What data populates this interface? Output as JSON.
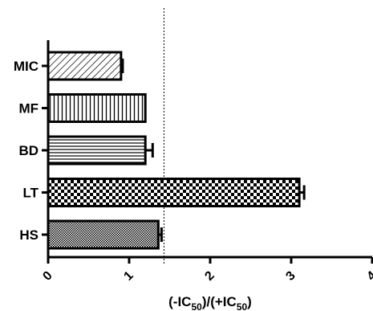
{
  "chart_data": {
    "type": "bar",
    "orientation": "horizontal",
    "categories": [
      "MIC",
      "MF",
      "BD",
      "LT",
      "HS"
    ],
    "values": [
      0.9,
      1.2,
      1.2,
      3.1,
      1.36
    ],
    "errors": [
      0.02,
      0.0,
      0.09,
      0.06,
      0.04
    ],
    "patterns": [
      "diagonal-hatch",
      "vertical-lines",
      "horizontal-lines",
      "checkerboard",
      "fine-dots"
    ],
    "xlim": [
      0,
      4
    ],
    "x_ticks": [
      "0",
      "1",
      "2",
      "3",
      "4"
    ],
    "reference_line": 1.43,
    "xlabel": {
      "prefix": "(-IC",
      "sub1": "50",
      "middle": ")/(+IC",
      "sub2": "50",
      "suffix": ")"
    }
  }
}
